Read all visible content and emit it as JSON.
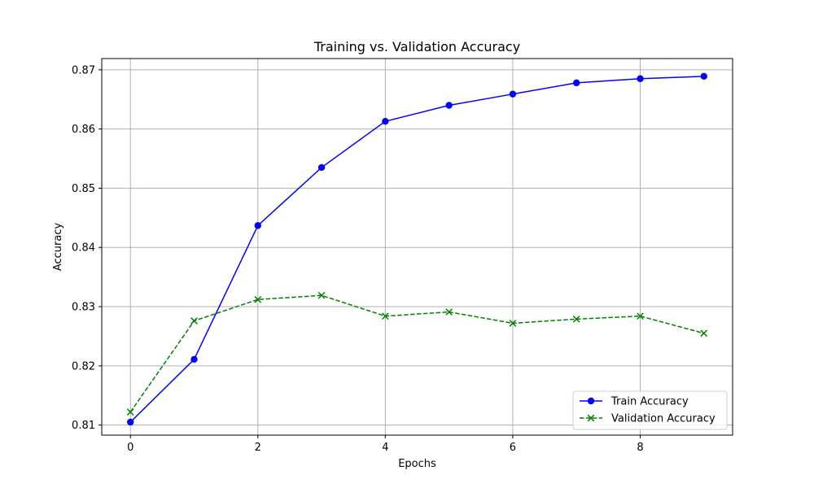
{
  "chart_data": {
    "type": "line",
    "title": "Training vs. Validation Accuracy",
    "xlabel": "Epochs",
    "ylabel": "Accuracy",
    "x": [
      0,
      1,
      2,
      3,
      4,
      5,
      6,
      7,
      8,
      9
    ],
    "xlim": [
      -0.45,
      9.45
    ],
    "ylim": [
      0.8083,
      0.8719
    ],
    "xticks": [
      0,
      2,
      4,
      6,
      8
    ],
    "xtick_labels": [
      "0",
      "2",
      "4",
      "6",
      "8"
    ],
    "yticks": [
      0.81,
      0.82,
      0.83,
      0.84,
      0.85,
      0.86,
      0.87
    ],
    "ytick_labels": [
      "0.81",
      "0.82",
      "0.83",
      "0.84",
      "0.85",
      "0.86",
      "0.87"
    ],
    "grid": true,
    "legend_position": "lower-right",
    "series": [
      {
        "name": "Train Accuracy",
        "color": "#0000ff",
        "linestyle": "solid",
        "marker": "circle",
        "values": [
          0.8105,
          0.8211,
          0.8437,
          0.8535,
          0.8613,
          0.864,
          0.8659,
          0.8678,
          0.8685,
          0.8689
        ]
      },
      {
        "name": "Validation Accuracy",
        "color": "#008000",
        "linestyle": "dashed",
        "marker": "x",
        "values": [
          0.8122,
          0.8276,
          0.8312,
          0.8319,
          0.8284,
          0.8291,
          0.8272,
          0.8279,
          0.8284,
          0.8255
        ]
      }
    ]
  }
}
